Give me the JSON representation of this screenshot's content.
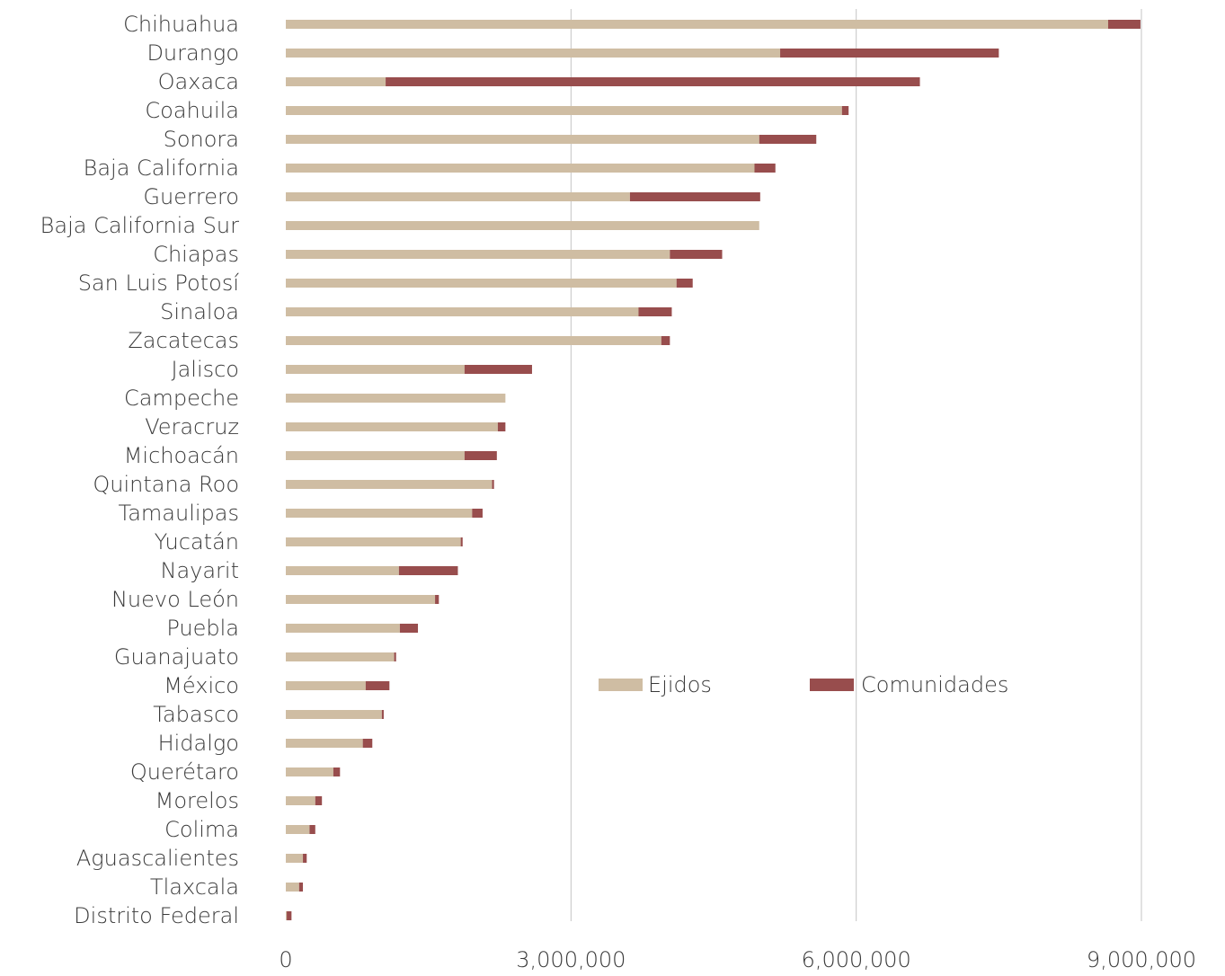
{
  "chart_data": {
    "type": "bar",
    "orientation": "horizontal",
    "stacked": true,
    "categories": [
      "Chihuahua",
      "Durango",
      "Oaxaca",
      "Coahuila",
      "Sonora",
      "Baja California",
      "Guerrero",
      "Baja California Sur",
      "Chiapas",
      "San Luis Potosí",
      "Sinaloa",
      "Zacatecas",
      "Jalisco",
      "Campeche",
      "Veracruz",
      "Michoacán",
      "Quintana Roo",
      "Tamaulipas",
      "Yucatán",
      "Nayarit",
      "Nuevo León",
      "Puebla",
      "Guanajuato",
      "México",
      "Tabasco",
      "Hidalgo",
      "Querétaro",
      "Morelos",
      "Colima",
      "Aguascalientes",
      "Tlaxcala",
      "Distrito Federal"
    ],
    "series": [
      {
        "name": "Ejidos",
        "color": "#cfbda3",
        "values": [
          8650000,
          5200000,
          1050000,
          5850000,
          4980000,
          4930000,
          3620000,
          4980000,
          4040000,
          4110000,
          3710000,
          3950000,
          1880000,
          2310000,
          2230000,
          1880000,
          2170000,
          1960000,
          1840000,
          1190000,
          1570000,
          1200000,
          1140000,
          840000,
          1010000,
          810000,
          500000,
          310000,
          250000,
          180000,
          140000,
          10000
        ]
      },
      {
        "name": "Comunidades",
        "color": "#984d4d",
        "values": [
          340000,
          2300000,
          5620000,
          70000,
          600000,
          220000,
          1370000,
          0,
          550000,
          170000,
          350000,
          90000,
          710000,
          0,
          80000,
          340000,
          20000,
          110000,
          20000,
          620000,
          40000,
          190000,
          20000,
          250000,
          20000,
          100000,
          70000,
          70000,
          60000,
          40000,
          40000,
          50000
        ]
      }
    ],
    "xlim": [
      0,
      9000000
    ],
    "xticks": [
      0,
      3000000,
      6000000,
      9000000
    ],
    "xtick_labels": [
      "0",
      "3,000,000",
      "6,000,000",
      "9,000,000"
    ],
    "grid": "vertical",
    "legend": "center-right"
  }
}
